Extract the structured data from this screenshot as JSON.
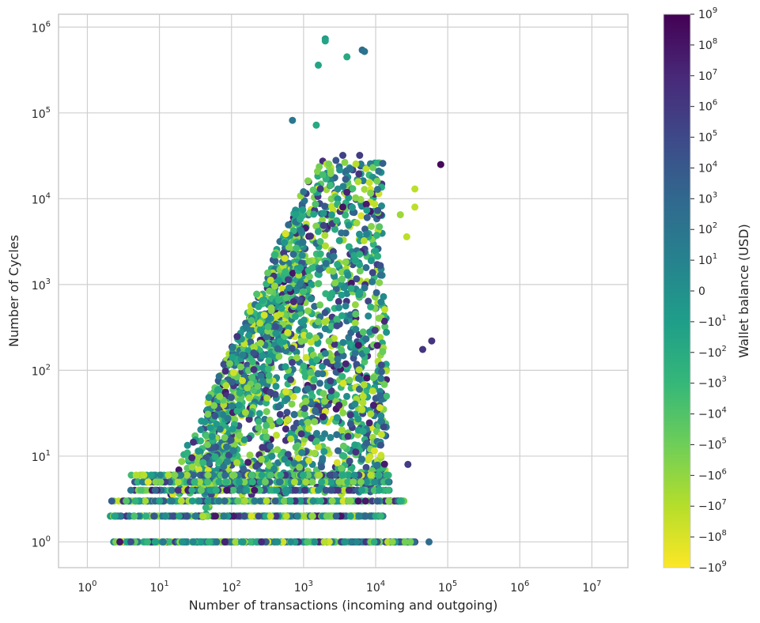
{
  "chart_data": {
    "type": "scatter",
    "title": "",
    "xlabel": "Number of transactions (incoming and outgoing)",
    "ylabel": "Number of Cycles",
    "xscale": "log",
    "yscale": "log",
    "grid": true,
    "xlim_log10": [
      -0.4,
      7.5
    ],
    "ylim_log10": [
      -0.3,
      6.15
    ],
    "x_ticks": [
      {
        "base": "10",
        "exp": "0",
        "log10": 0
      },
      {
        "base": "10",
        "exp": "1",
        "log10": 1
      },
      {
        "base": "10",
        "exp": "2",
        "log10": 2
      },
      {
        "base": "10",
        "exp": "3",
        "log10": 3
      },
      {
        "base": "10",
        "exp": "4",
        "log10": 4
      },
      {
        "base": "10",
        "exp": "5",
        "log10": 5
      },
      {
        "base": "10",
        "exp": "6",
        "log10": 6
      },
      {
        "base": "10",
        "exp": "7",
        "log10": 7
      }
    ],
    "y_ticks": [
      {
        "base": "10",
        "exp": "0",
        "log10": 0
      },
      {
        "base": "10",
        "exp": "1",
        "log10": 1
      },
      {
        "base": "10",
        "exp": "2",
        "log10": 2
      },
      {
        "base": "10",
        "exp": "3",
        "log10": 3
      },
      {
        "base": "10",
        "exp": "4",
        "log10": 4
      },
      {
        "base": "10",
        "exp": "5",
        "log10": 5
      },
      {
        "base": "10",
        "exp": "6",
        "log10": 6
      }
    ],
    "colorbar": {
      "label": "Wallet  balance (USD)",
      "colormap": "viridis (reversed: yellow = -10^9, dark purple = 10^9)",
      "colors": [
        "#fde725",
        "#b5de2b",
        "#6ece58",
        "#35b779",
        "#1f9e89",
        "#26828e",
        "#31688e",
        "#3e4989",
        "#482878",
        "#440154"
      ],
      "ticks": [
        {
          "sign": "",
          "base": "10",
          "exp": "9"
        },
        {
          "sign": "",
          "base": "10",
          "exp": "8"
        },
        {
          "sign": "",
          "base": "10",
          "exp": "7"
        },
        {
          "sign": "",
          "base": "10",
          "exp": "6"
        },
        {
          "sign": "",
          "base": "10",
          "exp": "5"
        },
        {
          "sign": "",
          "base": "10",
          "exp": "4"
        },
        {
          "sign": "",
          "base": "10",
          "exp": "3"
        },
        {
          "sign": "",
          "base": "10",
          "exp": "2"
        },
        {
          "sign": "",
          "base": "10",
          "exp": "1"
        },
        {
          "sign": "",
          "base": "0",
          "exp": ""
        },
        {
          "sign": "−",
          "base": "10",
          "exp": "1"
        },
        {
          "sign": "−",
          "base": "10",
          "exp": "2"
        },
        {
          "sign": "−",
          "base": "10",
          "exp": "3"
        },
        {
          "sign": "−",
          "base": "10",
          "exp": "4"
        },
        {
          "sign": "−",
          "base": "10",
          "exp": "5"
        },
        {
          "sign": "−",
          "base": "10",
          "exp": "6"
        },
        {
          "sign": "−",
          "base": "10",
          "exp": "7"
        },
        {
          "sign": "−",
          "base": "10",
          "exp": "8"
        },
        {
          "sign": "−",
          "base": "10",
          "exp": "9"
        }
      ]
    },
    "point_color_scale_note": "c = position on colorbar from 0 (bottom, -10^9, yellow) to 1 (top, 10^9, purple)",
    "notable_points": [
      {
        "x": 2000,
        "y": 730000,
        "c": 0.45
      },
      {
        "x": 2000,
        "y": 690000,
        "c": 0.42
      },
      {
        "x": 6500,
        "y": 540000,
        "c": 0.65
      },
      {
        "x": 7000,
        "y": 520000,
        "c": 0.62
      },
      {
        "x": 4000,
        "y": 450000,
        "c": 0.4
      },
      {
        "x": 1600,
        "y": 360000,
        "c": 0.42
      },
      {
        "x": 700,
        "y": 82000,
        "c": 0.6
      },
      {
        "x": 1500,
        "y": 72000,
        "c": 0.4
      },
      {
        "x": 80000,
        "y": 25000,
        "c": 0.98
      },
      {
        "x": 3500,
        "y": 32000,
        "c": 0.8
      },
      {
        "x": 6000,
        "y": 32000,
        "c": 0.82
      },
      {
        "x": 11000,
        "y": 21000,
        "c": 0.62
      },
      {
        "x": 35000,
        "y": 13000,
        "c": 0.1
      },
      {
        "x": 35000,
        "y": 8000,
        "c": 0.1
      },
      {
        "x": 3500,
        "y": 8000,
        "c": 0.95
      },
      {
        "x": 27000,
        "y": 3600,
        "c": 0.1
      },
      {
        "x": 22000,
        "y": 6500,
        "c": 0.15
      },
      {
        "x": 60000,
        "y": 220,
        "c": 0.85
      },
      {
        "x": 45000,
        "y": 175,
        "c": 0.85
      },
      {
        "x": 55000,
        "y": 1,
        "c": 0.65
      },
      {
        "x": 28000,
        "y": 8,
        "c": 0.82
      }
    ]
  }
}
